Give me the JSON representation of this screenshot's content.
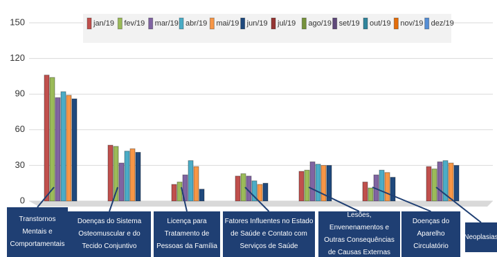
{
  "chart_data": {
    "type": "bar",
    "categories": [
      "Transtornos Mentais e Comportamentais",
      "Doenças do Sistema Osteomuscular e do Tecido Conjuntivo",
      "Licença para Tratamento de Pessoas da Família",
      "Fatores Influentes no Estado de Saúde e Contato com Serviços de Saúde",
      "Lesões, Envenenamentos e Outras Consequências de Causas Externas",
      "Doenças do Aparelho Circulatório",
      "Neoplasias"
    ],
    "series": [
      {
        "name": "jan/19",
        "color": "#c0504d",
        "values": [
          106,
          47,
          14,
          21,
          25,
          16,
          29
        ]
      },
      {
        "name": "fev/19",
        "color": "#9bbb59",
        "values": [
          104,
          46,
          16,
          23,
          26,
          11,
          27
        ]
      },
      {
        "name": "mar/19",
        "color": "#8064a2",
        "values": [
          87,
          32,
          22,
          21,
          33,
          22,
          33
        ]
      },
      {
        "name": "abr/19",
        "color": "#4bacc6",
        "values": [
          92,
          42,
          34,
          17,
          31,
          26,
          34
        ]
      },
      {
        "name": "mai/19",
        "color": "#f79646",
        "values": [
          89,
          44,
          29,
          14,
          30,
          24,
          32
        ]
      },
      {
        "name": "jun/19",
        "color": "#1f497d",
        "values": [
          86,
          41,
          10,
          15,
          30,
          20,
          30
        ]
      },
      {
        "name": "jul/19",
        "color": "#943634",
        "values": [
          null,
          null,
          null,
          null,
          null,
          null,
          null
        ]
      },
      {
        "name": "ago/19",
        "color": "#76923c",
        "values": [
          null,
          null,
          null,
          null,
          null,
          null,
          null
        ]
      },
      {
        "name": "set/19",
        "color": "#5f497a",
        "values": [
          null,
          null,
          null,
          null,
          null,
          null,
          null
        ]
      },
      {
        "name": "out/19",
        "color": "#31859c",
        "values": [
          null,
          null,
          null,
          null,
          null,
          null,
          null
        ]
      },
      {
        "name": "nov/19",
        "color": "#e36c09",
        "values": [
          null,
          null,
          null,
          null,
          null,
          null,
          null
        ]
      },
      {
        "name": "dez/19",
        "color": "#558ed5",
        "values": [
          null,
          null,
          null,
          null,
          null,
          null,
          null
        ]
      }
    ],
    "ylim": [
      0,
      150
    ],
    "yticks": [
      0,
      30,
      60,
      90,
      120,
      150
    ],
    "grid": true
  }
}
